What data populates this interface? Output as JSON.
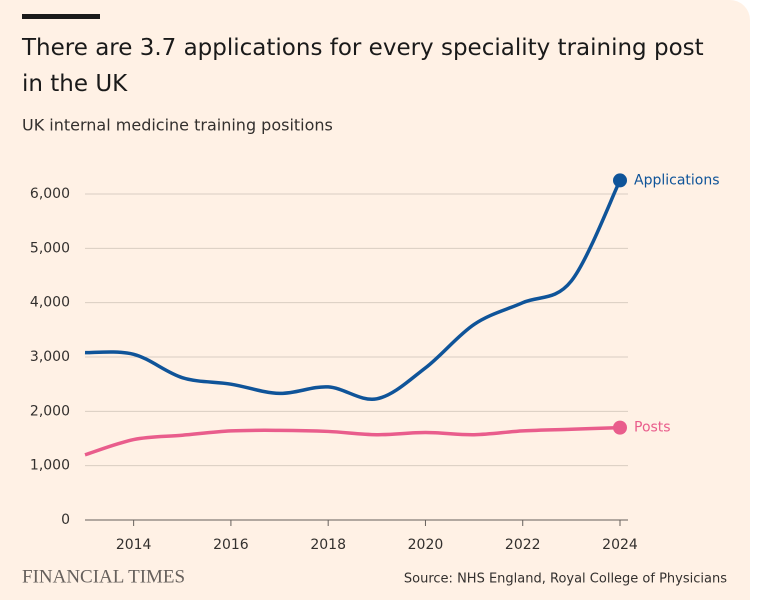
{
  "chart_data": {
    "type": "line",
    "title": "There are 3.7 applications for every speciality training post in the UK",
    "subtitle": "UK internal medicine training positions",
    "source": "Source: NHS England, Royal College of Physicians",
    "brand": "FINANCIAL TIMES",
    "x": [
      2013,
      2014,
      2015,
      2016,
      2017,
      2018,
      2019,
      2020,
      2021,
      2022,
      2023,
      2024
    ],
    "series": [
      {
        "name": "Applications",
        "color": "#0f5499",
        "values": [
          3080,
          3050,
          2620,
          2500,
          2330,
          2450,
          2230,
          2800,
          3600,
          4000,
          4400,
          6250
        ]
      },
      {
        "name": "Posts",
        "color": "#e95d8c",
        "values": [
          1200,
          1480,
          1560,
          1640,
          1650,
          1630,
          1570,
          1610,
          1570,
          1640,
          1670,
          1700
        ]
      }
    ],
    "xlim": [
      2013,
      2024
    ],
    "xticks": [
      2014,
      2016,
      2018,
      2020,
      2022,
      2024
    ],
    "ylim": [
      0,
      6000
    ],
    "yticks": [
      0,
      {
        "value": 1000,
        "label": "1,000"
      },
      {
        "value": 2000,
        "label": "2,000"
      },
      {
        "value": 3000,
        "label": "3,000"
      },
      {
        "value": 4000,
        "label": "4,000"
      },
      {
        "value": 5000,
        "label": "5,000"
      },
      {
        "value": 6000,
        "label": "6,000"
      }
    ],
    "grid": true
  }
}
